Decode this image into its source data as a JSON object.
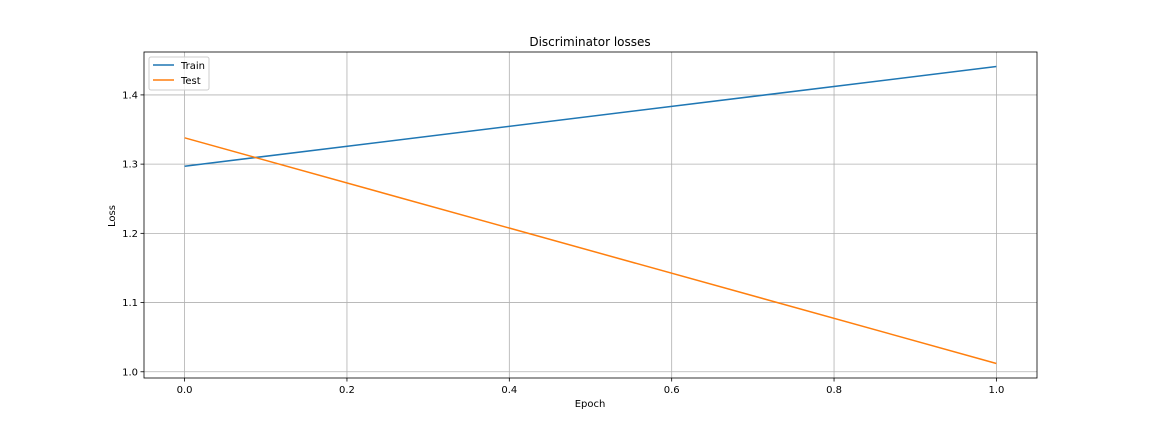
{
  "chart_data": {
    "type": "line",
    "title": "Discriminator losses",
    "xlabel": "Epoch",
    "ylabel": "Loss",
    "x": [
      0.0,
      1.0
    ],
    "xlim": [
      -0.05,
      1.05
    ],
    "ylim": [
      0.991,
      1.462
    ],
    "xticks": [
      "0.0",
      "0.2",
      "0.4",
      "0.6",
      "0.8",
      "1.0"
    ],
    "yticks": [
      "1.0",
      "1.1",
      "1.2",
      "1.3",
      "1.4"
    ],
    "grid": true,
    "legend_position": "upper-left",
    "series": [
      {
        "name": "Train",
        "color": "#1f77b4",
        "values": [
          1.297,
          1.441
        ]
      },
      {
        "name": "Test",
        "color": "#ff7f0e",
        "values": [
          1.338,
          1.012
        ]
      }
    ]
  }
}
